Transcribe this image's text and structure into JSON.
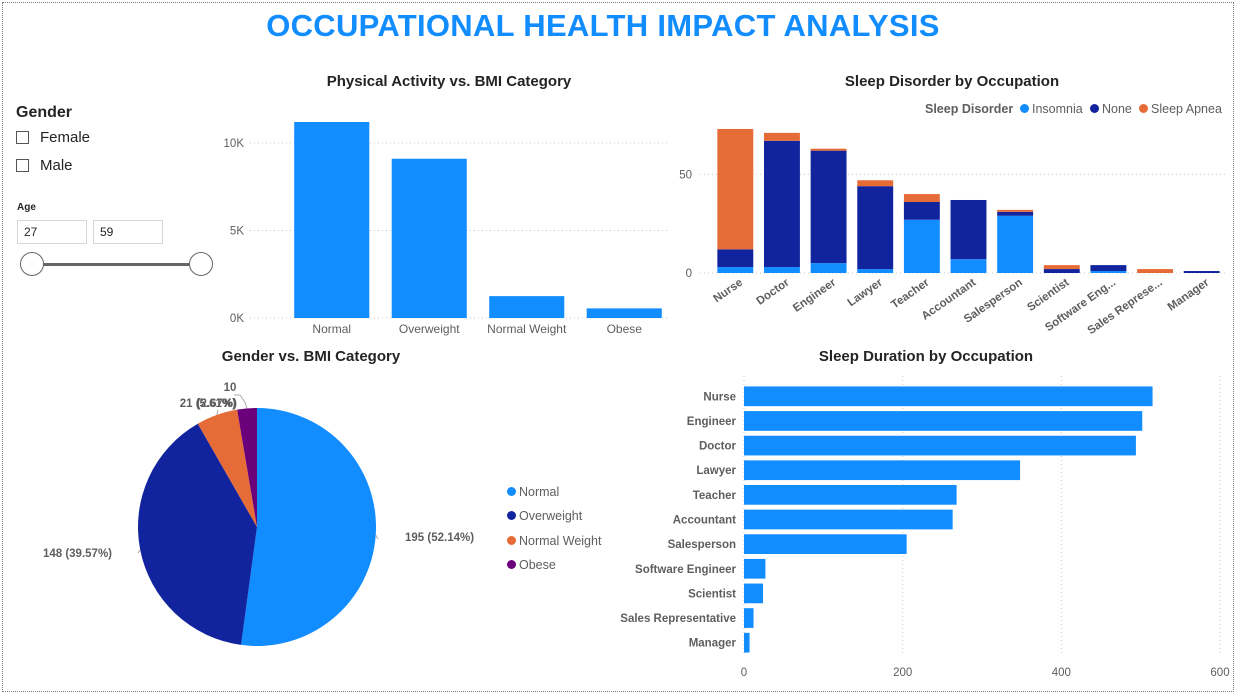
{
  "title": "OCCUPATIONAL HEALTH IMPACT ANALYSIS",
  "colors": {
    "primary": "#118dff",
    "navy": "#12239e",
    "orange": "#e66c37",
    "purple": "#6b007b",
    "title": "#118dff"
  },
  "slicers": {
    "gender": {
      "title": "Gender",
      "options": [
        {
          "label": "Female",
          "checked": false
        },
        {
          "label": "Male",
          "checked": false
        }
      ]
    },
    "age": {
      "title": "Age",
      "min": "27",
      "max": "59"
    }
  },
  "chart_data": [
    {
      "id": "bmi_activity",
      "type": "bar",
      "title": "Physical Activity vs. BMI Category",
      "categories": [
        "Normal",
        "Overweight",
        "Normal Weight",
        "Obese"
      ],
      "values": [
        11200,
        9100,
        1250,
        550
      ],
      "yticks": [
        {
          "value": 0,
          "label": "0K"
        },
        {
          "value": 5000,
          "label": "5K"
        },
        {
          "value": 10000,
          "label": "10K"
        }
      ],
      "ylim": [
        0,
        12000
      ],
      "color": "#118dff"
    },
    {
      "id": "sleep_disorder",
      "type": "bar",
      "stacked": true,
      "title": "Sleep Disorder by Occupation",
      "legend_title": "Sleep Disorder",
      "categories": [
        "Nurse",
        "Doctor",
        "Engineer",
        "Lawyer",
        "Teacher",
        "Accountant",
        "Salesperson",
        "Scientist",
        "Software Eng...",
        "Sales Represe...",
        "Manager"
      ],
      "series": [
        {
          "name": "Insomnia",
          "color": "#118dff",
          "values": [
            3,
            3,
            5,
            2,
            27,
            7,
            29,
            0,
            1,
            0,
            0
          ]
        },
        {
          "name": "None",
          "color": "#12239e",
          "values": [
            9,
            64,
            57,
            42,
            9,
            30,
            2,
            2,
            3,
            0,
            1
          ]
        },
        {
          "name": "Sleep Apnea",
          "color": "#e66c37",
          "values": [
            61,
            4,
            1,
            3,
            4,
            0,
            1,
            2,
            0,
            2,
            0
          ]
        }
      ],
      "yticks": [
        0,
        50
      ],
      "ylim": [
        0,
        75
      ]
    },
    {
      "id": "gender_bmi",
      "type": "pie",
      "title": "Gender vs. BMI Category",
      "slices": [
        {
          "name": "Normal",
          "value": 195,
          "label": "195 (52.14%)",
          "color": "#118dff"
        },
        {
          "name": "Overweight",
          "value": 148,
          "label": "148 (39.57%)",
          "color": "#12239e"
        },
        {
          "name": "Normal Weight",
          "value": 21,
          "label": "21 (5.61%)",
          "color": "#e66c37"
        },
        {
          "name": "Obese",
          "value": 10,
          "label": "10 (2.67%)",
          "color": "#6b007b"
        }
      ]
    },
    {
      "id": "sleep_duration",
      "type": "bar",
      "orientation": "horizontal",
      "title": "Sleep Duration by Occupation",
      "categories": [
        "Nurse",
        "Engineer",
        "Doctor",
        "Lawyer",
        "Teacher",
        "Accountant",
        "Salesperson",
        "Software Engineer",
        "Scientist",
        "Sales Representative",
        "Manager"
      ],
      "values": [
        515,
        502,
        494,
        348,
        268,
        263,
        205,
        27,
        24,
        12,
        7
      ],
      "xticks": [
        0,
        200,
        400,
        600
      ],
      "xlim": [
        0,
        600
      ],
      "color": "#118dff"
    }
  ]
}
